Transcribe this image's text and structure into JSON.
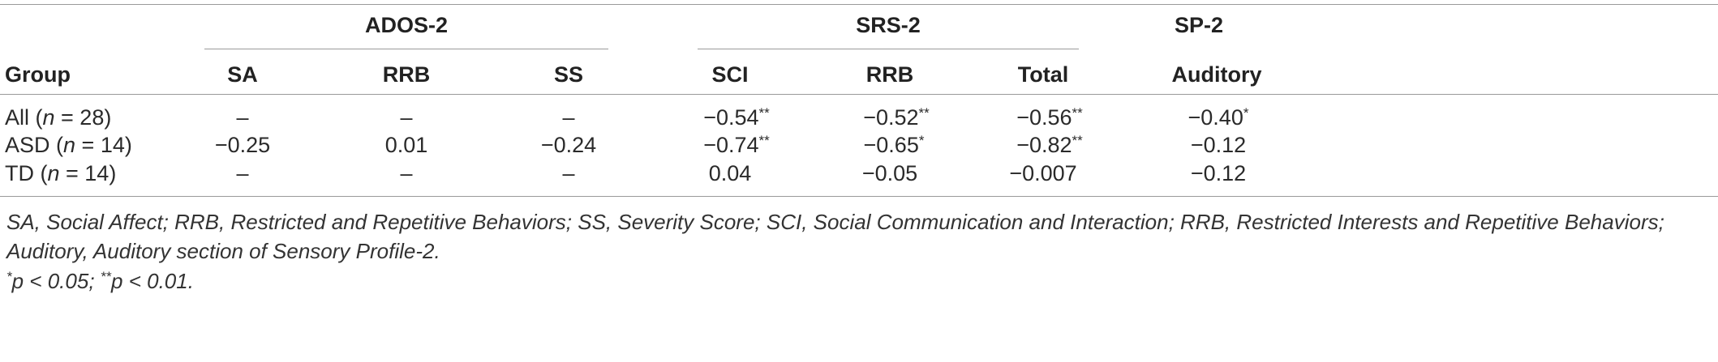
{
  "groups": {
    "ados": "ADOS-2",
    "srs": "SRS-2",
    "sp": "SP-2"
  },
  "columns": {
    "group": "Group",
    "sa": "SA",
    "rrb1": "RRB",
    "ss": "SS",
    "sci": "SCI",
    "rrb2": "RRB",
    "total": "Total",
    "auditory": "Auditory"
  },
  "rows": [
    {
      "label_pre": "All (",
      "label_n": "n",
      "label_post": " = 28)",
      "sa": "–",
      "rrb1": "–",
      "ss": "–",
      "sci": "−0.54",
      "sci_sig": "**",
      "rrb2": "−0.52",
      "rrb2_sig": "**",
      "total": "−0.56",
      "total_sig": "**",
      "auditory": "−0.40",
      "auditory_sig": "*"
    },
    {
      "label_pre": "ASD (",
      "label_n": "n",
      "label_post": " = 14)",
      "sa": "−0.25",
      "rrb1": "0.01",
      "ss": "−0.24",
      "sci": "−0.74",
      "sci_sig": "**",
      "rrb2": "−0.65",
      "rrb2_sig": "*",
      "total": "−0.82",
      "total_sig": "**",
      "auditory": "−0.12",
      "auditory_sig": ""
    },
    {
      "label_pre": "TD (",
      "label_n": "n",
      "label_post": " = 14)",
      "sa": "–",
      "rrb1": "–",
      "ss": "–",
      "sci": "0.04",
      "sci_sig": "",
      "rrb2": "−0.05",
      "rrb2_sig": "",
      "total": "−0.007",
      "total_sig": "",
      "auditory": "−0.12",
      "auditory_sig": ""
    }
  ],
  "footnote": {
    "abbrev": "SA, Social Affect; RRB, Restricted and Repetitive Behaviors; SS, Severity Score; SCI, Social Communication and Interaction; RRB, Restricted Interests and Repetitive Behaviors; Auditory, Auditory section of Sensory Profile-2.",
    "sig1_mark": "*",
    "sig1": "p < 0.05; ",
    "sig2_mark": "**",
    "sig2": "p < 0.01."
  }
}
